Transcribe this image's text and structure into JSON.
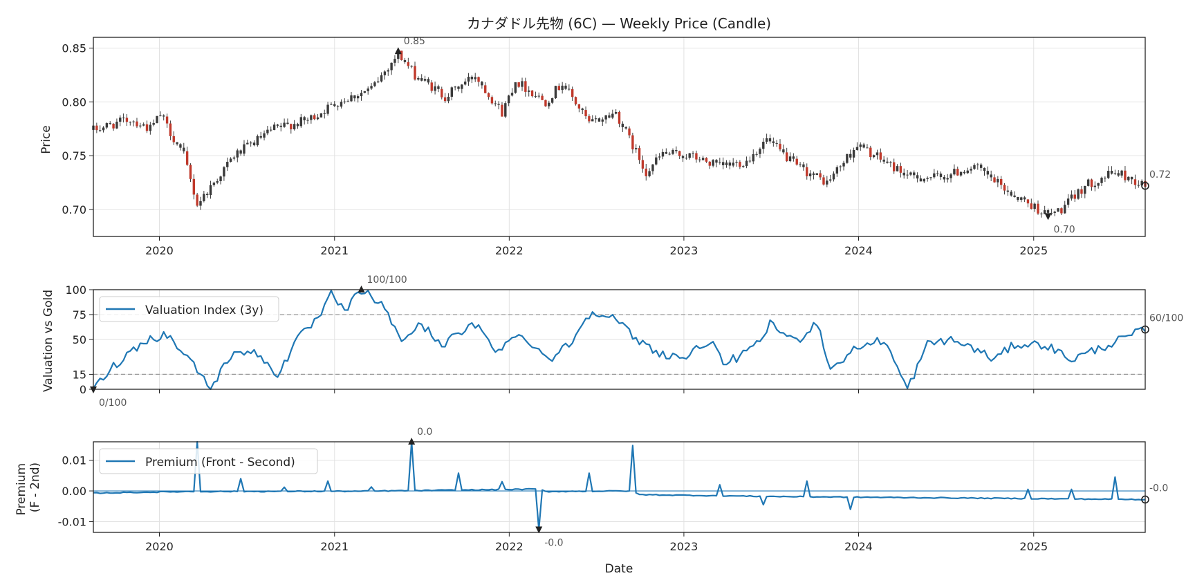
{
  "chart_data": {
    "type": "candlestick_with_indicators",
    "title": "カナダドル先物 (6C) — Weekly Price (Candle)",
    "x_axis": {
      "label": "Date",
      "range": [
        "2019-08-16",
        "2025-08-22"
      ],
      "tick_labels": [
        "2020",
        "2021",
        "2022",
        "2023",
        "2024",
        "2025"
      ]
    },
    "panels": [
      {
        "id": "price",
        "type": "candlestick",
        "ylabel": "Price",
        "ylim": [
          0.675,
          0.86
        ],
        "yticks": [
          0.7,
          0.75,
          0.8,
          0.85
        ],
        "ytick_labels": [
          "0.70",
          "0.75",
          "0.80",
          "0.85"
        ],
        "grid": true,
        "anchors": [
          [
            "2019-08-16",
            0.774
          ],
          [
            "2019-11-01",
            0.784
          ],
          [
            "2019-12-13",
            0.775
          ],
          [
            "2020-01-03",
            0.788
          ],
          [
            "2020-02-21",
            0.75
          ],
          [
            "2020-03-20",
            0.705
          ],
          [
            "2020-04-24",
            0.725
          ],
          [
            "2020-06-05",
            0.75
          ],
          [
            "2020-08-28",
            0.775
          ],
          [
            "2020-11-06",
            0.783
          ],
          [
            "2021-01-08",
            0.8
          ],
          [
            "2021-03-19",
            0.812
          ],
          [
            "2021-05-14",
            0.845
          ],
          [
            "2021-06-18",
            0.825
          ],
          [
            "2021-08-20",
            0.805
          ],
          [
            "2021-10-22",
            0.825
          ],
          [
            "2021-12-17",
            0.79
          ],
          [
            "2022-01-14",
            0.82
          ],
          [
            "2022-03-18",
            0.8
          ],
          [
            "2022-04-22",
            0.818
          ],
          [
            "2022-06-17",
            0.78
          ],
          [
            "2022-08-12",
            0.79
          ],
          [
            "2022-10-14",
            0.735
          ],
          [
            "2022-11-18",
            0.752
          ],
          [
            "2023-01-13",
            0.75
          ],
          [
            "2023-03-17",
            0.74
          ],
          [
            "2023-05-12",
            0.745
          ],
          [
            "2023-06-23",
            0.765
          ],
          [
            "2023-08-25",
            0.74
          ],
          [
            "2023-10-27",
            0.725
          ],
          [
            "2023-12-29",
            0.76
          ],
          [
            "2024-04-19",
            0.73
          ],
          [
            "2024-06-21",
            0.73
          ],
          [
            "2024-08-30",
            0.74
          ],
          [
            "2024-11-15",
            0.715
          ],
          [
            "2025-01-31",
            0.695
          ],
          [
            "2025-02-28",
            0.7
          ],
          [
            "2025-04-18",
            0.722
          ],
          [
            "2025-06-20",
            0.735
          ],
          [
            "2025-08-22",
            0.722
          ]
        ],
        "annotations": [
          {
            "label": "0.85",
            "date": "2021-05-14",
            "value": 0.847,
            "marker": "triangle-up"
          },
          {
            "label": "0.70",
            "date": "2025-01-31",
            "value": 0.694,
            "marker": "triangle-down"
          },
          {
            "label": "0.72",
            "date": "2025-08-22",
            "value": 0.722,
            "marker": "circle"
          }
        ]
      },
      {
        "id": "valuation",
        "type": "line",
        "ylabel": "Valuation vs Gold",
        "ylim": [
          0,
          100
        ],
        "yticks": [
          0,
          15,
          50,
          75,
          100
        ],
        "ytick_labels": [
          "0",
          "15",
          "50",
          "75",
          "100"
        ],
        "hlines": [
          15,
          75
        ],
        "legend": {
          "label": "Valuation Index (3y)",
          "position": "upper-left"
        },
        "color": "#1f77b4",
        "anchors": [
          [
            "2019-08-16",
            0
          ],
          [
            "2019-09-20",
            20
          ],
          [
            "2019-10-25",
            35
          ],
          [
            "2019-12-06",
            50
          ],
          [
            "2020-01-17",
            55
          ],
          [
            "2020-03-13",
            25
          ],
          [
            "2020-04-17",
            0
          ],
          [
            "2020-06-05",
            40
          ],
          [
            "2020-07-24",
            35
          ],
          [
            "2020-09-04",
            15
          ],
          [
            "2020-10-16",
            50
          ],
          [
            "2020-12-04",
            75
          ],
          [
            "2020-12-25",
            95
          ],
          [
            "2021-01-22",
            78
          ],
          [
            "2021-02-26",
            100
          ],
          [
            "2021-04-09",
            85
          ],
          [
            "2021-05-21",
            50
          ],
          [
            "2021-07-02",
            65
          ],
          [
            "2021-08-13",
            45
          ],
          [
            "2021-10-22",
            65
          ],
          [
            "2021-12-03",
            40
          ],
          [
            "2022-01-28",
            55
          ],
          [
            "2022-03-25",
            30
          ],
          [
            "2022-05-06",
            45
          ],
          [
            "2022-06-24",
            80
          ],
          [
            "2022-08-12",
            70
          ],
          [
            "2022-09-23",
            50
          ],
          [
            "2022-11-18",
            35
          ],
          [
            "2023-01-06",
            32
          ],
          [
            "2023-02-24",
            50
          ],
          [
            "2023-03-24",
            25
          ],
          [
            "2023-05-26",
            40
          ],
          [
            "2023-06-30",
            65
          ],
          [
            "2023-08-25",
            48
          ],
          [
            "2023-10-06",
            68
          ],
          [
            "2023-11-03",
            20
          ],
          [
            "2023-12-29",
            42
          ],
          [
            "2024-02-23",
            50
          ],
          [
            "2024-04-12",
            0
          ],
          [
            "2024-05-24",
            45
          ],
          [
            "2024-07-05",
            50
          ],
          [
            "2024-08-16",
            44
          ],
          [
            "2024-10-11",
            30
          ],
          [
            "2024-11-22",
            45
          ],
          [
            "2025-01-24",
            45
          ],
          [
            "2025-03-21",
            30
          ],
          [
            "2025-05-23",
            42
          ],
          [
            "2025-08-22",
            60
          ]
        ],
        "annotations": [
          {
            "label": "100/100",
            "date": "2021-02-26",
            "value": 100,
            "marker": "triangle-up"
          },
          {
            "label": "0/100",
            "date": "2019-08-16",
            "value": 0,
            "marker": "triangle-down"
          },
          {
            "label": "60/100",
            "date": "2025-08-22",
            "value": 60,
            "marker": "circle"
          }
        ]
      },
      {
        "id": "premium",
        "type": "line",
        "ylabel": "Premium (F - 2nd)",
        "ylabel_lines": [
          "Premium",
          "(F - 2nd)"
        ],
        "ylim": [
          -0.0135,
          0.016
        ],
        "yticks": [
          -0.01,
          0.0,
          0.01
        ],
        "ytick_labels": [
          "-0.01",
          "0.00",
          "0.01"
        ],
        "hlines": [
          0
        ],
        "legend": {
          "label": "Premium (Front - Second)",
          "position": "upper-left"
        },
        "color": "#1f77b4",
        "anchors": [
          [
            "2019-08-16",
            -0.0007
          ],
          [
            "2020-02-28",
            -0.0002
          ],
          [
            "2021-02-26",
            -0.0001
          ],
          [
            "2021-06-11",
            0.0001
          ],
          [
            "2022-03-04",
            0.0006
          ],
          [
            "2022-03-18",
            -0.0002
          ],
          [
            "2022-09-16",
            0.0
          ],
          [
            "2022-09-30",
            -0.0012
          ],
          [
            "2023-06-30",
            -0.0018
          ],
          [
            "2024-12-27",
            -0.0025
          ],
          [
            "2025-08-22",
            -0.0028
          ]
        ],
        "spikes": [
          [
            "2020-03-20",
            0.016
          ],
          [
            "2020-06-19",
            0.004
          ],
          [
            "2020-09-18",
            0.0012
          ],
          [
            "2020-12-18",
            0.0032
          ],
          [
            "2021-03-19",
            0.0013
          ],
          [
            "2021-06-11",
            0.016
          ],
          [
            "2021-09-17",
            0.0058
          ],
          [
            "2021-12-17",
            0.003
          ],
          [
            "2022-03-04",
            -0.0125
          ],
          [
            "2022-06-17",
            0.0058
          ],
          [
            "2022-09-16",
            0.0148
          ],
          [
            "2023-03-17",
            0.002
          ],
          [
            "2023-06-16",
            -0.0045
          ],
          [
            "2023-09-15",
            0.0032
          ],
          [
            "2023-12-15",
            -0.006
          ],
          [
            "2024-12-20",
            0.0005
          ],
          [
            "2025-03-21",
            0.0005
          ],
          [
            "2025-06-20",
            0.0045
          ]
        ],
        "annotations": [
          {
            "label": "0.0",
            "date": "2021-06-11",
            "value": 0.016,
            "marker": "triangle-up"
          },
          {
            "label": "-0.0",
            "date": "2022-03-04",
            "value": -0.0125,
            "marker": "triangle-down"
          },
          {
            "label": "-0.0",
            "date": "2025-08-22",
            "value": -0.0028,
            "marker": "circle"
          }
        ]
      }
    ],
    "colors": {
      "candle_up": "#3a3a3a",
      "candle_down": "#c0392b",
      "line": "#1f77b4",
      "grid": "#e2e2e2",
      "hline": "#999999"
    }
  }
}
